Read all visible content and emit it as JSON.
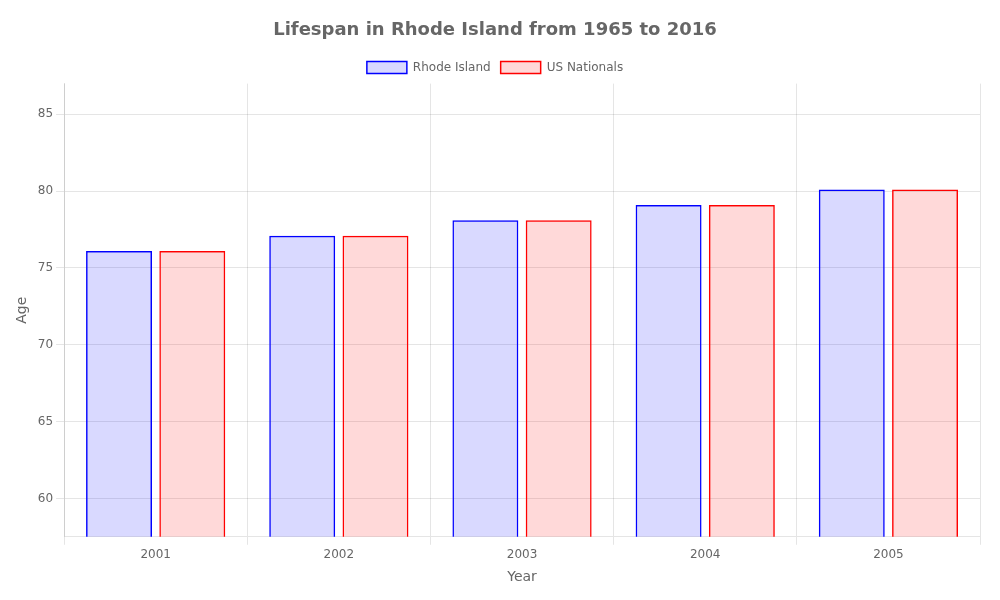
{
  "chart_data": {
    "type": "bar",
    "title": "Lifespan in Rhode Island from 1965 to 2016",
    "x_label": "Year",
    "y_label": "Age",
    "categories": [
      "2001",
      "2002",
      "2003",
      "2004",
      "2005"
    ],
    "series": [
      {
        "name": "Rhode Island",
        "color": "#0000ff",
        "values": [
          76.1,
          77.1,
          78.1,
          79.1,
          80.1
        ]
      },
      {
        "name": "US Nationals",
        "color": "#ff0000",
        "values": [
          76.1,
          77.1,
          78.1,
          79.1,
          80.1
        ]
      }
    ],
    "ylim": [
      57.5,
      87
    ],
    "yticks": [
      60,
      65,
      70,
      75,
      80,
      85
    ],
    "grid": true,
    "legend": "top"
  }
}
